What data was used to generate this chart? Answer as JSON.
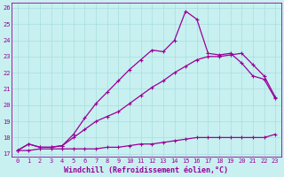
{
  "xlabel": "Windchill (Refroidissement éolien,°C)",
  "bg_color": "#c8f0f0",
  "line_color": "#990099",
  "grid_color": "#a8dede",
  "xmin": -0.5,
  "xmax": 23.5,
  "ymin": 16.8,
  "ymax": 26.3,
  "line1_x": [
    0,
    1,
    2,
    3,
    4,
    5,
    6,
    7,
    8,
    9,
    10,
    11,
    12,
    13,
    14,
    15,
    16,
    17,
    18,
    19,
    20,
    21,
    22,
    23
  ],
  "line1_y": [
    17.2,
    17.2,
    17.3,
    17.3,
    17.3,
    17.3,
    17.3,
    17.3,
    17.4,
    17.4,
    17.5,
    17.6,
    17.6,
    17.7,
    17.8,
    17.9,
    18.0,
    18.0,
    18.0,
    18.0,
    18.0,
    18.0,
    18.0,
    18.2
  ],
  "line2_x": [
    0,
    1,
    2,
    3,
    4,
    5,
    6,
    7,
    8,
    9,
    10,
    11,
    12,
    13,
    14,
    15,
    16,
    17,
    18,
    19,
    20,
    21,
    22,
    23
  ],
  "line2_y": [
    17.2,
    17.6,
    17.4,
    17.4,
    17.5,
    18.0,
    18.5,
    19.0,
    19.3,
    19.6,
    20.1,
    20.6,
    21.1,
    21.5,
    22.0,
    22.4,
    22.8,
    23.0,
    23.0,
    23.1,
    23.2,
    22.5,
    21.8,
    20.5
  ],
  "line3_x": [
    0,
    1,
    2,
    3,
    4,
    5,
    6,
    7,
    8,
    9,
    10,
    11,
    12,
    13,
    14,
    15,
    16,
    17,
    18,
    19,
    20,
    21,
    22,
    23
  ],
  "line3_y": [
    17.2,
    17.6,
    17.4,
    17.4,
    17.5,
    18.2,
    19.2,
    20.1,
    20.8,
    21.5,
    22.2,
    22.8,
    23.4,
    23.3,
    24.0,
    25.8,
    25.3,
    23.2,
    23.1,
    23.2,
    22.6,
    21.8,
    21.6,
    20.4
  ],
  "yticks": [
    17,
    18,
    19,
    20,
    21,
    22,
    23,
    24,
    25,
    26
  ],
  "xticks": [
    0,
    1,
    2,
    3,
    4,
    5,
    6,
    7,
    8,
    9,
    10,
    11,
    12,
    13,
    14,
    15,
    16,
    17,
    18,
    19,
    20,
    21,
    22,
    23
  ],
  "marker": "P",
  "marker_size": 2.5,
  "linewidth": 0.9,
  "tick_fontsize": 5.0,
  "xlabel_fontsize": 6.0
}
